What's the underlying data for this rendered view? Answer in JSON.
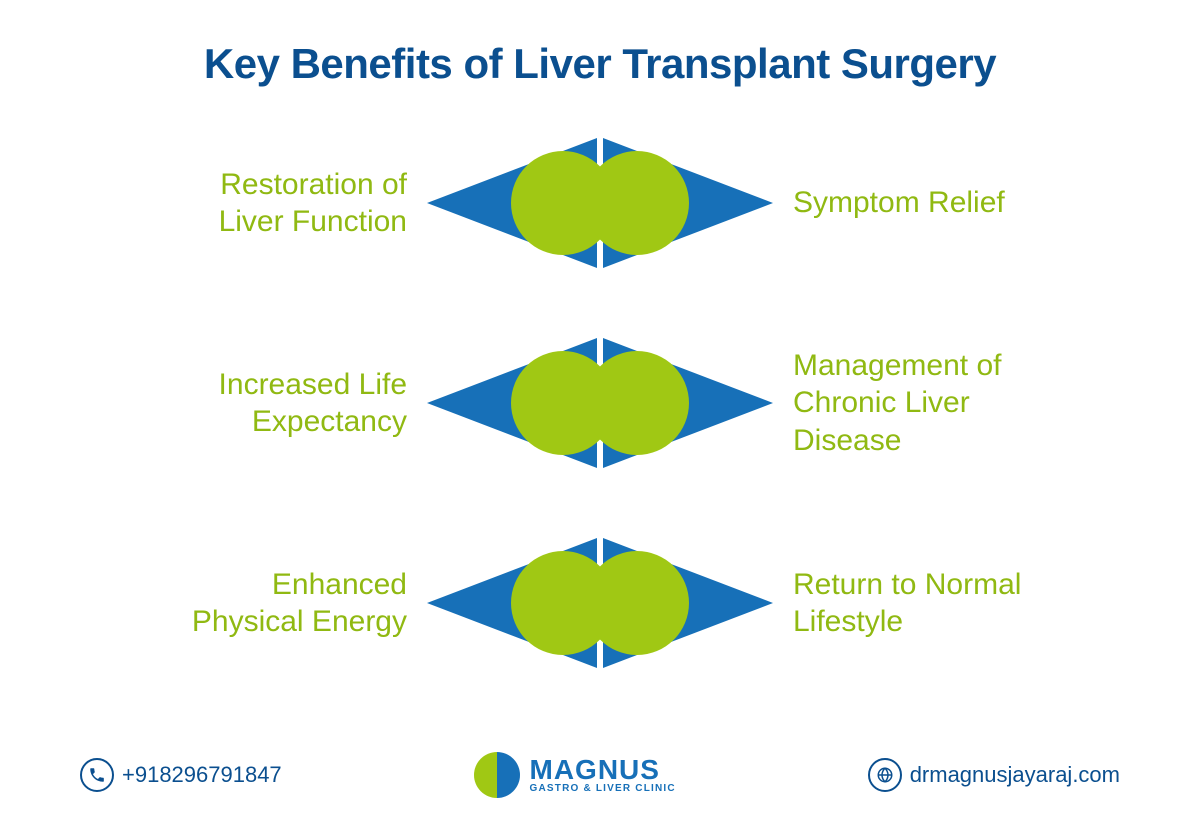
{
  "title": "Key Benefits of Liver Transplant Surgery",
  "colors": {
    "title": "#0b4f8f",
    "label": "#90b912",
    "triangle": "#1770b8",
    "circle": "#a0c814",
    "footer_text": "#0b4f8f",
    "background": "#ffffff"
  },
  "typography": {
    "title_fontsize": 42,
    "label_fontsize": 30,
    "footer_fontsize": 22
  },
  "layout": {
    "type": "infographic",
    "row_count": 3,
    "arrow_width": 170,
    "arrow_height": 130,
    "circle_diameter": 104,
    "row_gap": 50
  },
  "rows": [
    {
      "left": "Restoration of\nLiver Function",
      "right": "Symptom Relief"
    },
    {
      "left": "Increased Life\nExpectancy",
      "right": "Management of\nChronic Liver\nDisease"
    },
    {
      "left": "Enhanced\nPhysical Energy",
      "right": "Return to Normal\nLifestyle"
    }
  ],
  "footer": {
    "phone": "+918296791847",
    "website": "drmagnusjayaraj.com",
    "logo_brand": "MAGNUS",
    "logo_tagline": "GASTRO & LIVER CLINIC"
  }
}
